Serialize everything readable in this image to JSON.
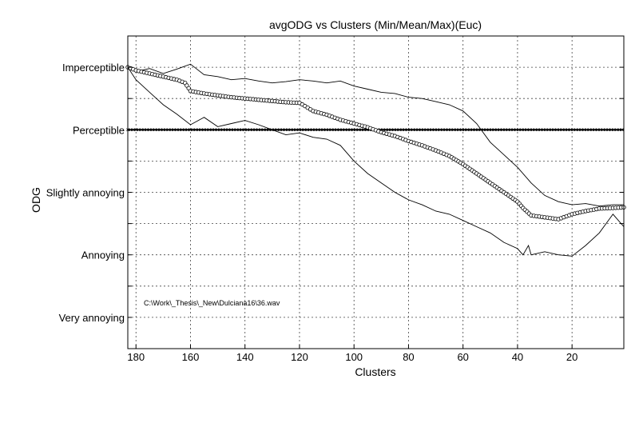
{
  "chart_data": {
    "type": "line",
    "title": "avgODG vs Clusters (Min/Mean/Max)(Euc)",
    "xlabel": "Clusters",
    "ylabel": "ODG",
    "xlim": [
      183,
      1
    ],
    "x_reversed": true,
    "ylim": [
      -4.5,
      0.5
    ],
    "grid": true,
    "annotation": "C:\\Work\\_Thesis\\_New\\Dulciana16\\36.wav",
    "x_ticks": [
      180,
      160,
      140,
      120,
      100,
      80,
      60,
      40,
      20
    ],
    "y_ticks": [
      {
        "value": 0,
        "label": "Imperceptible"
      },
      {
        "value": -1,
        "label": "Perceptible"
      },
      {
        "value": -2,
        "label": "Slightly annoying"
      },
      {
        "value": -3,
        "label": "Annoying"
      },
      {
        "value": -4,
        "label": "Very annoying"
      }
    ],
    "reference_line": {
      "y": -1,
      "marker": "x"
    },
    "series": [
      {
        "name": "",
        "style": "max",
        "x": [
          183,
          178,
          175,
          170,
          165,
          160,
          155,
          150,
          145,
          140,
          135,
          130,
          125,
          120,
          115,
          110,
          105,
          100,
          95,
          90,
          85,
          80,
          75,
          70,
          65,
          60,
          55,
          50,
          45,
          40,
          35,
          30,
          25,
          20,
          15,
          10,
          5,
          1
        ],
        "y": [
          0.0,
          -0.05,
          -0.02,
          -0.1,
          -0.03,
          0.05,
          -0.12,
          -0.15,
          -0.2,
          -0.18,
          -0.22,
          -0.25,
          -0.23,
          -0.2,
          -0.22,
          -0.25,
          -0.22,
          -0.3,
          -0.35,
          -0.4,
          -0.42,
          -0.48,
          -0.5,
          -0.55,
          -0.6,
          -0.7,
          -0.9,
          -1.2,
          -1.4,
          -1.6,
          -1.85,
          -2.05,
          -2.15,
          -2.2,
          -2.18,
          -2.22,
          -2.2,
          -2.2
        ]
      },
      {
        "name": "",
        "style": "mean",
        "x": [
          183,
          180,
          175,
          170,
          165,
          162,
          160,
          155,
          150,
          145,
          140,
          135,
          130,
          125,
          120,
          118,
          115,
          110,
          105,
          100,
          95,
          90,
          85,
          80,
          75,
          70,
          65,
          60,
          55,
          50,
          45,
          40,
          38,
          35,
          30,
          25,
          20,
          15,
          10,
          5,
          1
        ],
        "y": [
          0.0,
          -0.05,
          -0.1,
          -0.15,
          -0.2,
          -0.25,
          -0.38,
          -0.42,
          -0.45,
          -0.48,
          -0.5,
          -0.52,
          -0.54,
          -0.56,
          -0.57,
          -0.62,
          -0.7,
          -0.76,
          -0.84,
          -0.9,
          -0.96,
          -1.04,
          -1.1,
          -1.18,
          -1.25,
          -1.33,
          -1.42,
          -1.55,
          -1.7,
          -1.85,
          -2.0,
          -2.15,
          -2.25,
          -2.37,
          -2.4,
          -2.43,
          -2.35,
          -2.3,
          -2.26,
          -2.25,
          -2.24
        ]
      },
      {
        "name": "",
        "style": "min",
        "x": [
          183,
          180,
          175,
          170,
          165,
          160,
          155,
          150,
          145,
          140,
          135,
          130,
          125,
          120,
          115,
          110,
          105,
          100,
          95,
          90,
          85,
          80,
          75,
          70,
          65,
          60,
          55,
          50,
          45,
          40,
          38,
          36,
          35,
          30,
          25,
          20,
          15,
          10,
          5,
          1
        ],
        "y": [
          0.0,
          -0.2,
          -0.4,
          -0.6,
          -0.75,
          -0.92,
          -0.8,
          -0.95,
          -0.9,
          -0.85,
          -0.92,
          -1.0,
          -1.08,
          -1.05,
          -1.12,
          -1.15,
          -1.25,
          -1.5,
          -1.7,
          -1.85,
          -2.0,
          -2.12,
          -2.2,
          -2.3,
          -2.35,
          -2.45,
          -2.55,
          -2.65,
          -2.8,
          -2.9,
          -3.0,
          -2.85,
          -3.0,
          -2.95,
          -3.0,
          -3.02,
          -2.85,
          -2.65,
          -2.35,
          -2.55
        ]
      }
    ]
  }
}
